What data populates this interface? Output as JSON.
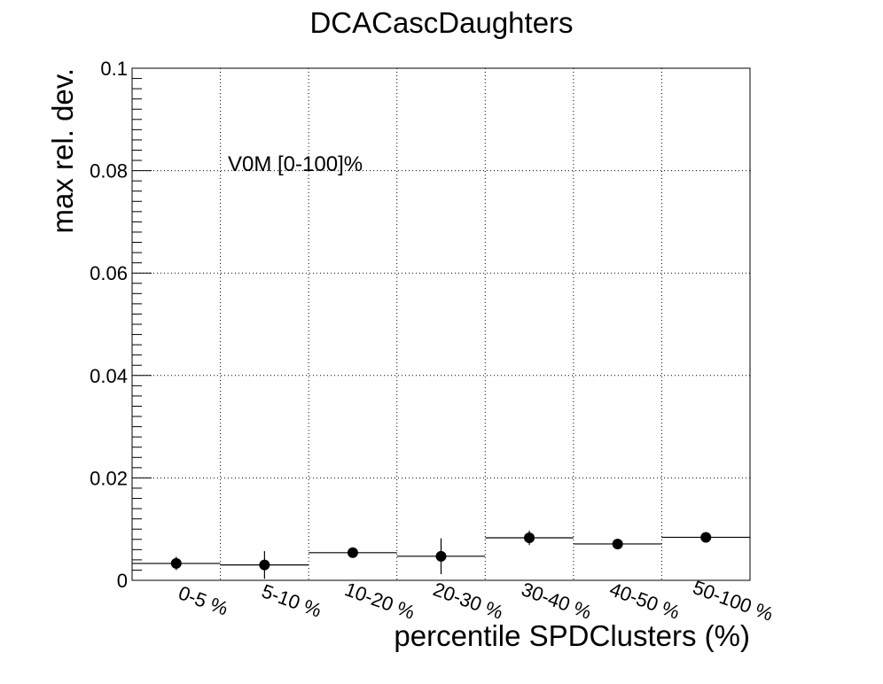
{
  "chart_data": {
    "type": "scatter",
    "title": "DCACascDaughters",
    "xlabel": "percentile SPDClusters (%)",
    "ylabel": "max rel. dev.",
    "annotation": "V0M [0-100]%",
    "categories": [
      "0-5 %",
      "5-10 %",
      "10-20 %",
      "20-30 %",
      "30-40 %",
      "40-50 %",
      "50-100 %"
    ],
    "values": [
      0.0033,
      0.003,
      0.0054,
      0.0047,
      0.0083,
      0.0071,
      0.0084
    ],
    "errors": [
      0.0013,
      0.0027,
      0.0008,
      0.0035,
      0.0014,
      0.0007,
      0.0006
    ],
    "ylim": [
      0,
      0.1
    ],
    "yticks": [
      "0",
      "0.02",
      "0.04",
      "0.06",
      "0.08",
      "0.1"
    ],
    "ytick_values": [
      0,
      0.02,
      0.04,
      0.06,
      0.08,
      0.1
    ],
    "grid": true,
    "legend": "none",
    "marker_color": "#000000"
  }
}
